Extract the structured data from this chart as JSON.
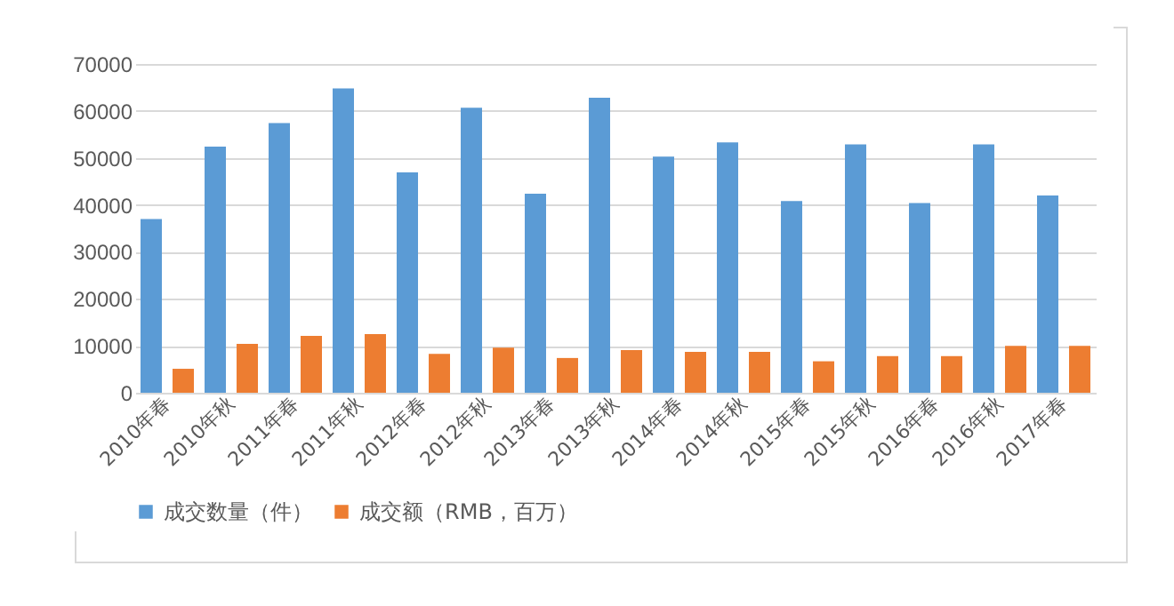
{
  "chart_data": {
    "type": "bar",
    "categories": [
      "2010年春",
      "2010年秋",
      "2011年春",
      "2011年秋",
      "2012年春",
      "2012年秋",
      "2013年春",
      "2013年秋",
      "2014年春",
      "2014年秋",
      "2015年春",
      "2015年秋",
      "2016年春",
      "2016年秋",
      "2017年春"
    ],
    "series": [
      {
        "name": "成交数量（件）",
        "color": "#5b9bd5",
        "values": [
          37000,
          52400,
          57400,
          64800,
          46900,
          60700,
          42400,
          62800,
          50300,
          53300,
          40800,
          52900,
          40400,
          52900,
          42000
        ]
      },
      {
        "name": "成交额（RMB，百万）",
        "color": "#ed7d31",
        "values": [
          5100,
          10400,
          12100,
          12500,
          8300,
          9600,
          7400,
          9100,
          8700,
          8700,
          6700,
          7800,
          7800,
          10000,
          10000
        ]
      }
    ],
    "ylim": [
      0,
      70000
    ],
    "yticks": [
      0,
      10000,
      20000,
      30000,
      40000,
      50000,
      60000,
      70000
    ],
    "grid": "y",
    "legend": "bottom"
  }
}
